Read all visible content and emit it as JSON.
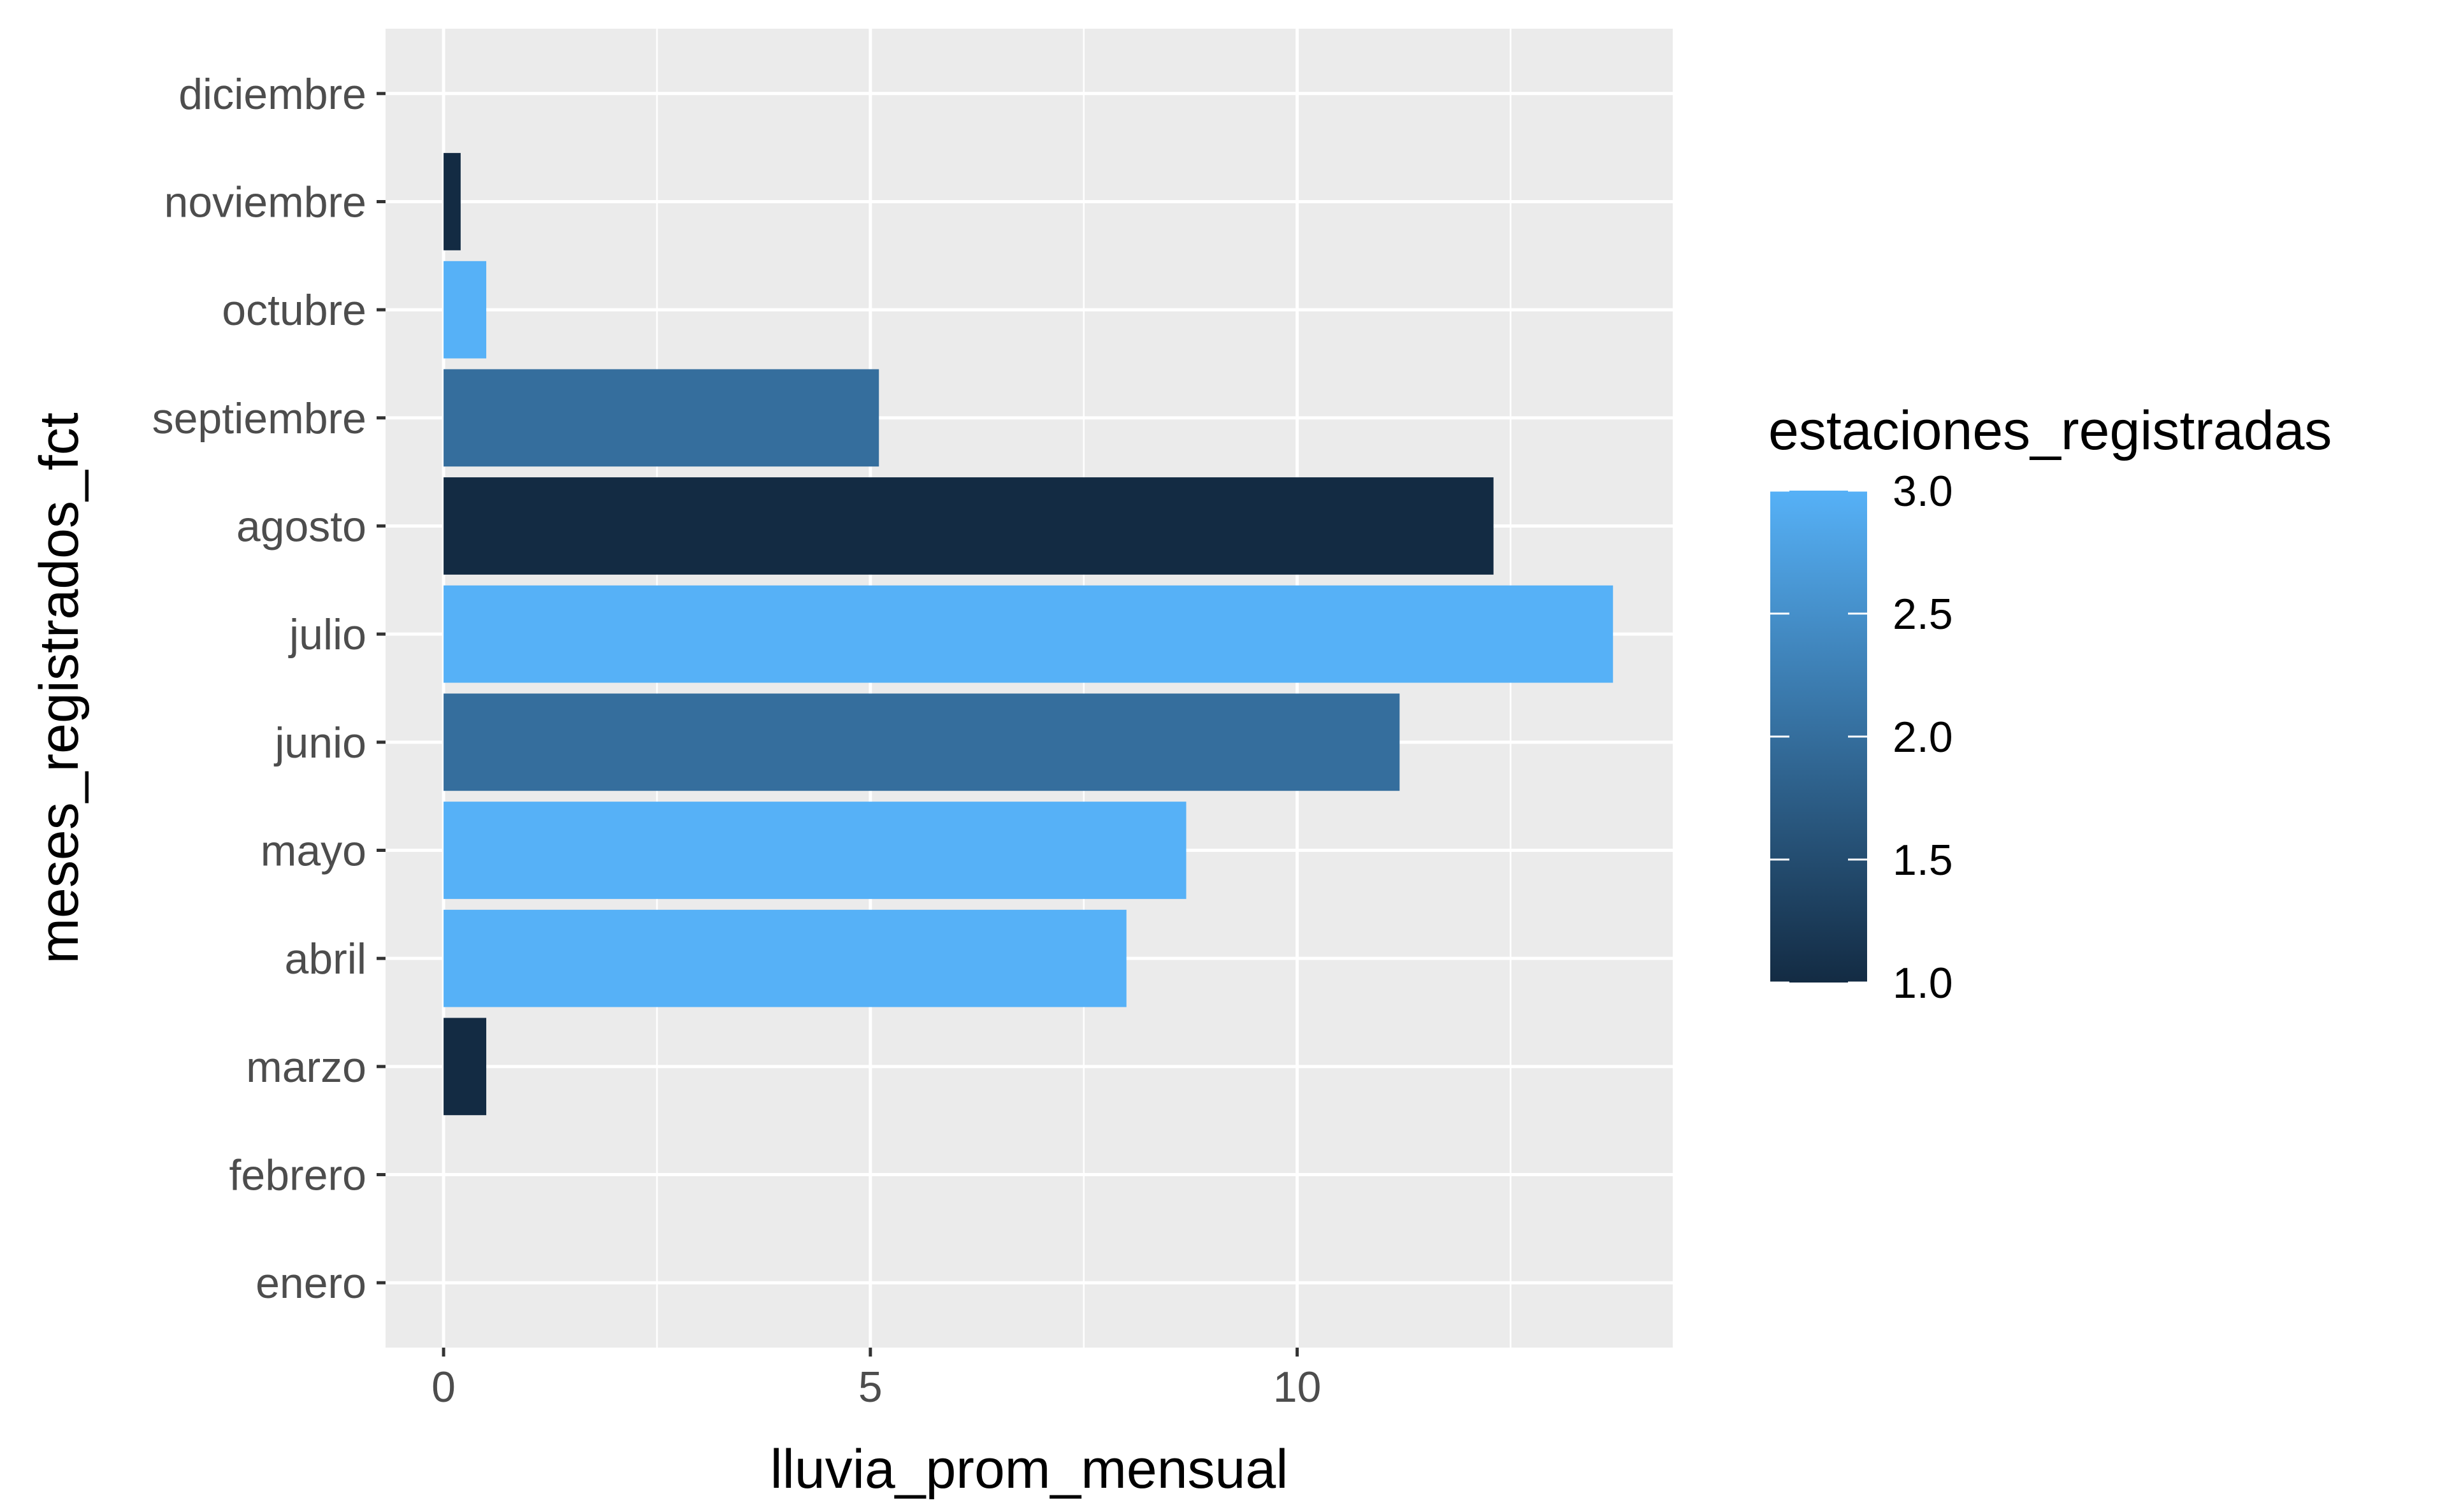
{
  "chart_data": {
    "type": "bar",
    "orientation": "horizontal",
    "xlabel": "lluvia_prom_mensual",
    "ylabel": "meses_registrados_fct",
    "xlim": [
      -0.68,
      14.4
    ],
    "x_ticks": [
      0,
      5,
      10
    ],
    "categories": [
      "enero",
      "febrero",
      "marzo",
      "abril",
      "mayo",
      "junio",
      "julio",
      "agosto",
      "septiembre",
      "octubre",
      "noviembre",
      "diciembre"
    ],
    "values": [
      null,
      null,
      0.5,
      8.0,
      8.7,
      11.2,
      13.7,
      12.3,
      5.1,
      0.5,
      0.2,
      null
    ],
    "color_values": [
      null,
      null,
      1.0,
      3.0,
      3.0,
      2.0,
      3.0,
      1.0,
      2.0,
      3.0,
      1.0,
      null
    ],
    "grid": true,
    "legend": {
      "title": "estaciones_registradas",
      "position": "right",
      "type": "colorbar",
      "range": [
        1.0,
        3.0
      ],
      "ticks": [
        "1.0",
        "1.5",
        "2.0",
        "2.5",
        "3.0"
      ],
      "low_color": "#132B43",
      "high_color": "#56B1F7"
    },
    "colors": {
      "panel_background": "#EBEBEB",
      "grid": "#FFFFFF",
      "tick_text": "#4D4D4D",
      "tick_mark": "#333333"
    }
  }
}
